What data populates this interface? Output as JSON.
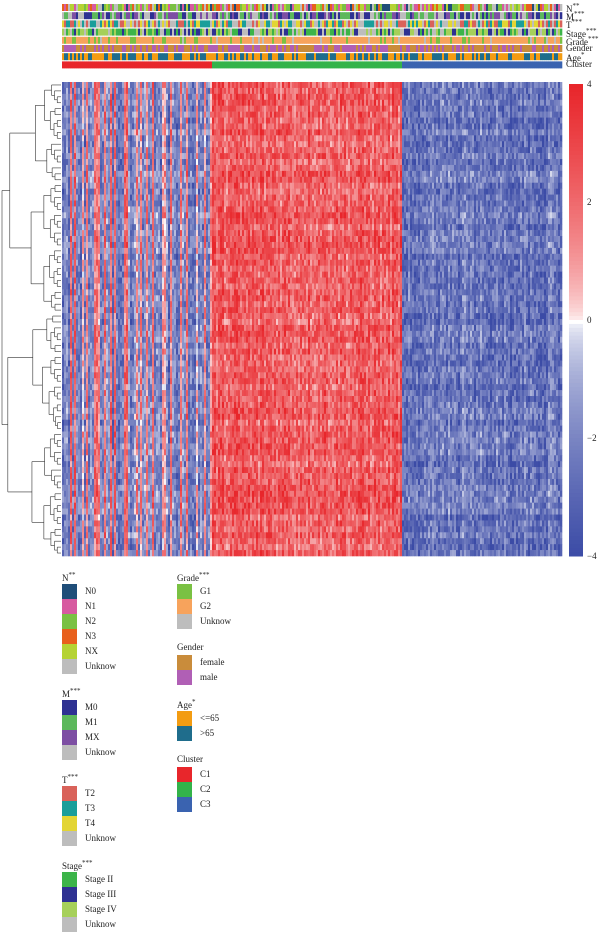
{
  "chart_data": {
    "type": "heatmap",
    "title": "",
    "annotation_tracks": [
      {
        "name": "N",
        "significance": "**"
      },
      {
        "name": "M",
        "significance": "***"
      },
      {
        "name": "T",
        "significance": "***"
      },
      {
        "name": "Stage",
        "significance": "***"
      },
      {
        "name": "Grade",
        "significance": "***"
      },
      {
        "name": "Gender",
        "significance": ""
      },
      {
        "name": "Age",
        "significance": "*"
      },
      {
        "name": "Cluster",
        "significance": ""
      }
    ],
    "clusters": [
      {
        "name": "C1",
        "fraction": 0.3,
        "color": "#e8262b",
        "tendency": "mixed"
      },
      {
        "name": "C2",
        "fraction": 0.38,
        "color": "#33b34a",
        "tendency": "high"
      },
      {
        "name": "C3",
        "fraction": 0.32,
        "color": "#3a63b0",
        "tendency": "low"
      }
    ],
    "color_scale": {
      "min": -4,
      "max": 4,
      "ticks": [
        4,
        2,
        0,
        -2,
        -4
      ],
      "tick_labels": [
        "4",
        "2",
        "0",
        "−2",
        "−4"
      ],
      "low_color": "#3b4ba6",
      "mid_color": "#ffffff",
      "high_color": "#e8262b"
    },
    "legends": [
      {
        "title": "N",
        "significance": "**",
        "items": [
          {
            "label": "N0",
            "color": "#1f4e79"
          },
          {
            "label": "N1",
            "color": "#d75aa0"
          },
          {
            "label": "N2",
            "color": "#7ac143"
          },
          {
            "label": "N3",
            "color": "#e8601c"
          },
          {
            "label": "NX",
            "color": "#b5d334"
          },
          {
            "label": "Unknow",
            "color": "#bdbdbd"
          }
        ]
      },
      {
        "title": "M",
        "significance": "***",
        "items": [
          {
            "label": "M0",
            "color": "#2e3192"
          },
          {
            "label": "M1",
            "color": "#5cb85c"
          },
          {
            "label": "MX",
            "color": "#7d4fa3"
          },
          {
            "label": "Unknow",
            "color": "#bdbdbd"
          }
        ]
      },
      {
        "title": "T",
        "significance": "***",
        "items": [
          {
            "label": "T2",
            "color": "#d9625a"
          },
          {
            "label": "T3",
            "color": "#1a9e9a"
          },
          {
            "label": "T4",
            "color": "#e3d534"
          },
          {
            "label": "Unknow",
            "color": "#bdbdbd"
          }
        ]
      },
      {
        "title": "Stage",
        "significance": "***",
        "items": [
          {
            "label": "Stage II",
            "color": "#3cb449"
          },
          {
            "label": "Stage III",
            "color": "#2e3192"
          },
          {
            "label": "Stage IV",
            "color": "#a6d05a"
          },
          {
            "label": "Unknow",
            "color": "#bdbdbd"
          }
        ]
      },
      {
        "title": "Grade",
        "significance": "***",
        "items": [
          {
            "label": "G1",
            "color": "#7ac143"
          },
          {
            "label": "G2",
            "color": "#f7a35c"
          },
          {
            "label": "Unknow",
            "color": "#bdbdbd"
          }
        ]
      },
      {
        "title": "Gender",
        "significance": "",
        "items": [
          {
            "label": "female",
            "color": "#c98c3b"
          },
          {
            "label": "male",
            "color": "#b05fb5"
          }
        ]
      },
      {
        "title": "Age",
        "significance": "*",
        "items": [
          {
            "label": "<=65",
            "color": "#f39c12"
          },
          {
            "label": ">65",
            "color": "#1f6d8c"
          }
        ]
      },
      {
        "title": "Cluster",
        "significance": "",
        "items": [
          {
            "label": "C1",
            "color": "#e8262b"
          },
          {
            "label": "C2",
            "color": "#33b34a"
          },
          {
            "label": "C3",
            "color": "#3a63b0"
          }
        ]
      }
    ]
  }
}
